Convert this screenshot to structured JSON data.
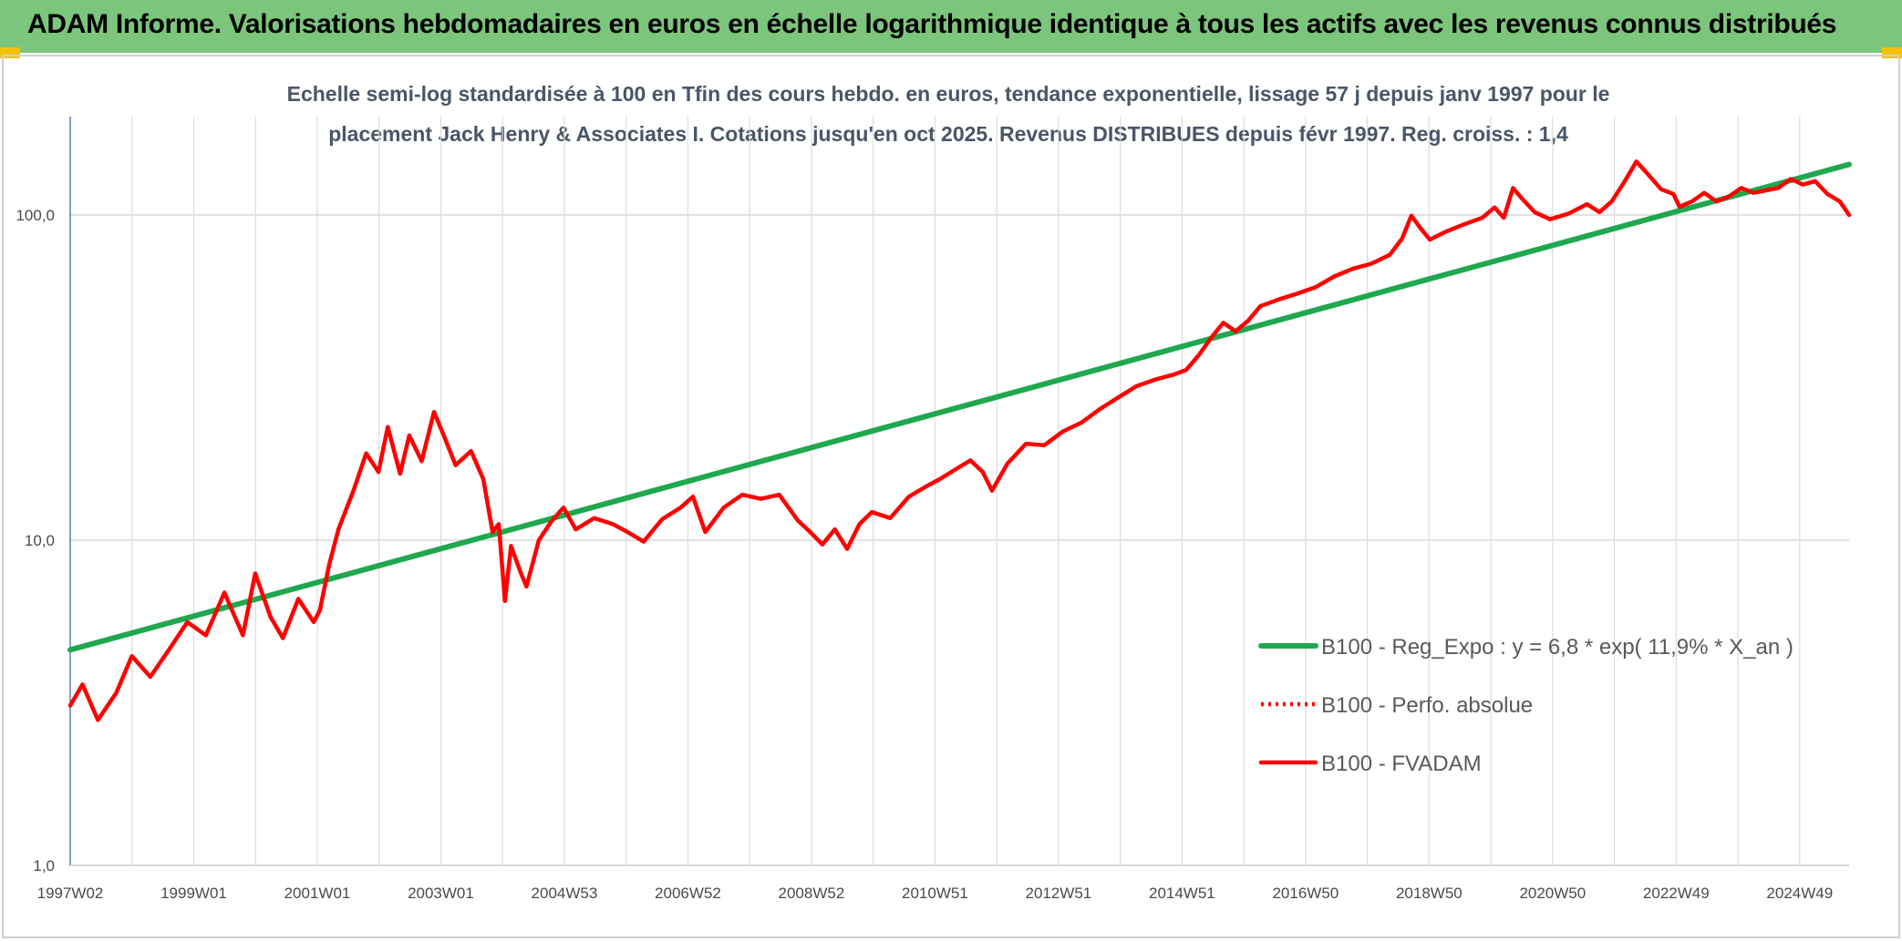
{
  "header": {
    "title": "ADAM Informe. Valorisations hebdomadaires en euros en échelle logarithmique identique à tous les actifs avec les revenus connus distribués"
  },
  "chart_data": {
    "type": "line",
    "subtitle_line1": "Echelle semi-log standardisée à 100 en Tfin des cours hebdo. en euros, tendance exponentielle, lissage 57 j depuis janv 1997 pour le",
    "subtitle_line2": "placement Jack Henry & Associates I. Cotations jusqu'en oct 2025. Revenus DISTRIBUES depuis févr 1997. Reg. croiss. : 1,4",
    "y_scale": "log",
    "ylim": [
      1,
      180
    ],
    "y_ticks": [
      "1,0",
      "10,0",
      "100,0"
    ],
    "x_ticks": [
      "1997W02",
      "1999W01",
      "2001W01",
      "2003W01",
      "2004W53",
      "2006W52",
      "2008W52",
      "2010W51",
      "2012W51",
      "2014W51",
      "2016W50",
      "2018W50",
      "2020W50",
      "2022W49",
      "2024W49"
    ],
    "x_range_years": [
      1997.0,
      2025.85
    ],
    "grid": "vertical and horizontal",
    "legend_position": "right, lower-middle",
    "series": [
      {
        "name": "B100 - Reg_Expo : y = 6,8 * exp( 11,9% *  X_an )",
        "color": "#1fa84f",
        "style": "solid",
        "points": [
          [
            1997.0,
            4.6
          ],
          [
            2025.85,
            143
          ]
        ]
      },
      {
        "name": "B100 - Perfo. absolue",
        "color": "#ff0000",
        "style": "dotted",
        "points": []
      },
      {
        "name": "B100 - FVADAM",
        "color": "#ff0000",
        "style": "solid",
        "points": [
          [
            1997.0,
            3.1
          ],
          [
            1997.2,
            3.6
          ],
          [
            1997.45,
            2.8
          ],
          [
            1997.75,
            3.4
          ],
          [
            1998.0,
            4.4
          ],
          [
            1998.3,
            3.8
          ],
          [
            1998.6,
            4.6
          ],
          [
            1998.9,
            5.6
          ],
          [
            1999.2,
            5.1
          ],
          [
            1999.5,
            6.9
          ],
          [
            1999.8,
            5.1
          ],
          [
            2000.0,
            7.9
          ],
          [
            2000.25,
            5.8
          ],
          [
            2000.45,
            5.0
          ],
          [
            2000.7,
            6.6
          ],
          [
            2000.95,
            5.6
          ],
          [
            2001.05,
            6.1
          ],
          [
            2001.2,
            8.4
          ],
          [
            2001.35,
            10.8
          ],
          [
            2001.6,
            14.3
          ],
          [
            2001.8,
            18.5
          ],
          [
            2002.0,
            16.2
          ],
          [
            2002.15,
            22.3
          ],
          [
            2002.35,
            16.0
          ],
          [
            2002.5,
            21.0
          ],
          [
            2002.7,
            17.5
          ],
          [
            2002.9,
            24.8
          ],
          [
            2003.05,
            21.2
          ],
          [
            2003.25,
            17.0
          ],
          [
            2003.5,
            18.8
          ],
          [
            2003.7,
            15.4
          ],
          [
            2003.85,
            10.6
          ],
          [
            2003.95,
            11.2
          ],
          [
            2004.05,
            6.5
          ],
          [
            2004.15,
            9.6
          ],
          [
            2004.3,
            8.0
          ],
          [
            2004.4,
            7.2
          ],
          [
            2004.6,
            10.0
          ],
          [
            2004.8,
            11.4
          ],
          [
            2005.0,
            12.6
          ],
          [
            2005.2,
            10.8
          ],
          [
            2005.5,
            11.7
          ],
          [
            2005.8,
            11.2
          ],
          [
            2006.0,
            10.7
          ],
          [
            2006.3,
            9.9
          ],
          [
            2006.6,
            11.6
          ],
          [
            2006.9,
            12.6
          ],
          [
            2007.1,
            13.6
          ],
          [
            2007.3,
            10.6
          ],
          [
            2007.6,
            12.6
          ],
          [
            2007.9,
            13.8
          ],
          [
            2008.2,
            13.4
          ],
          [
            2008.5,
            13.8
          ],
          [
            2008.8,
            11.5
          ],
          [
            2009.0,
            10.6
          ],
          [
            2009.2,
            9.7
          ],
          [
            2009.4,
            10.8
          ],
          [
            2009.6,
            9.4
          ],
          [
            2009.8,
            11.2
          ],
          [
            2010.0,
            12.2
          ],
          [
            2010.3,
            11.7
          ],
          [
            2010.6,
            13.6
          ],
          [
            2010.9,
            14.7
          ],
          [
            2011.1,
            15.4
          ],
          [
            2011.4,
            16.7
          ],
          [
            2011.6,
            17.6
          ],
          [
            2011.8,
            16.2
          ],
          [
            2011.95,
            14.2
          ],
          [
            2012.2,
            17.2
          ],
          [
            2012.5,
            19.8
          ],
          [
            2012.8,
            19.6
          ],
          [
            2013.1,
            21.6
          ],
          [
            2013.4,
            23.0
          ],
          [
            2013.7,
            25.3
          ],
          [
            2014.0,
            27.5
          ],
          [
            2014.3,
            29.8
          ],
          [
            2014.6,
            31.2
          ],
          [
            2014.9,
            32.3
          ],
          [
            2015.1,
            33.4
          ],
          [
            2015.3,
            37.0
          ],
          [
            2015.5,
            41.8
          ],
          [
            2015.7,
            46.6
          ],
          [
            2015.9,
            43.9
          ],
          [
            2016.1,
            47.2
          ],
          [
            2016.3,
            52.4
          ],
          [
            2016.6,
            55.0
          ],
          [
            2016.9,
            57.3
          ],
          [
            2017.2,
            60.0
          ],
          [
            2017.5,
            64.7
          ],
          [
            2017.8,
            68.3
          ],
          [
            2018.1,
            70.8
          ],
          [
            2018.4,
            75.4
          ],
          [
            2018.6,
            84.6
          ],
          [
            2018.75,
            99.5
          ],
          [
            2018.9,
            91.0
          ],
          [
            2019.05,
            84.0
          ],
          [
            2019.3,
            88.7
          ],
          [
            2019.6,
            93.5
          ],
          [
            2019.9,
            98.0
          ],
          [
            2020.1,
            105.5
          ],
          [
            2020.25,
            98.0
          ],
          [
            2020.4,
            121.0
          ],
          [
            2020.55,
            112.0
          ],
          [
            2020.75,
            102.0
          ],
          [
            2021.0,
            97.0
          ],
          [
            2021.3,
            101.0
          ],
          [
            2021.6,
            108.0
          ],
          [
            2021.8,
            102.0
          ],
          [
            2022.0,
            110.0
          ],
          [
            2022.2,
            126.0
          ],
          [
            2022.4,
            146.0
          ],
          [
            2022.55,
            136.0
          ],
          [
            2022.8,
            120.0
          ],
          [
            2023.0,
            116.0
          ],
          [
            2023.1,
            106.0
          ],
          [
            2023.3,
            110.0
          ],
          [
            2023.5,
            117.0
          ],
          [
            2023.7,
            110.0
          ],
          [
            2023.9,
            114.0
          ],
          [
            2024.1,
            121.0
          ],
          [
            2024.3,
            117.0
          ],
          [
            2024.5,
            119.0
          ],
          [
            2024.7,
            121.0
          ],
          [
            2024.9,
            129.0
          ],
          [
            2025.1,
            124.0
          ],
          [
            2025.3,
            127.0
          ],
          [
            2025.5,
            116.0
          ],
          [
            2025.7,
            110.0
          ],
          [
            2025.85,
            100.0
          ]
        ]
      }
    ]
  }
}
